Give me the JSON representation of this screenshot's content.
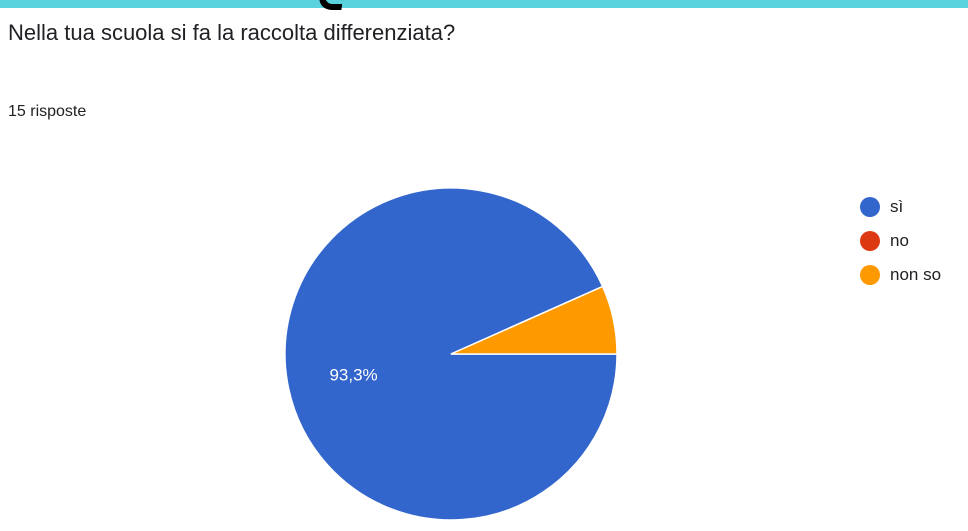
{
  "question": "Nella tua scuola si fa la raccolta differenziata?",
  "response_count": "15 risposte",
  "accent_color": "#5ad3df",
  "chart_data": {
    "type": "pie",
    "title": "Nella tua scuola si fa la raccolta differenziata?",
    "subtitle": "15 risposte",
    "categories": [
      "sì",
      "no",
      "non so"
    ],
    "values": [
      14,
      0,
      1
    ],
    "percent_labels": [
      "93,3%",
      "",
      ""
    ],
    "colors": [
      "#3366cc",
      "#dc3912",
      "#ff9900"
    ],
    "legend_position": "right"
  }
}
